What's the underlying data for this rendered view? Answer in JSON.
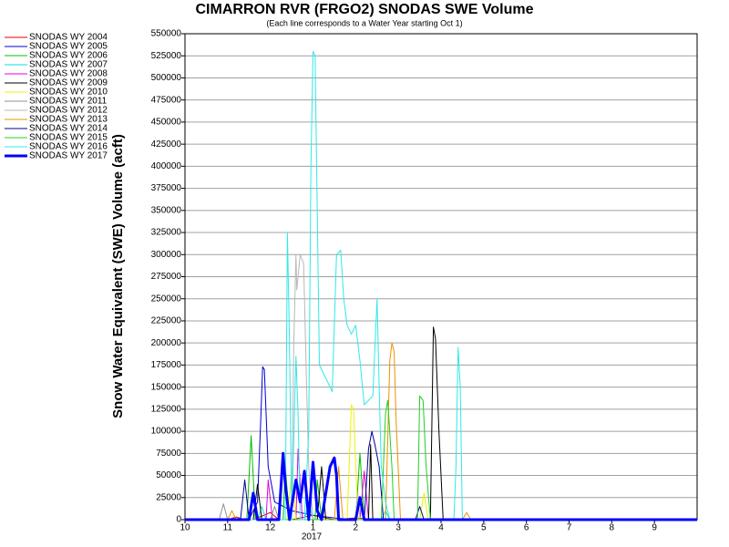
{
  "chart_data": {
    "type": "line",
    "title": "CIMARRON RVR (FRGO2) SNODAS SWE Volume",
    "subtitle": "(Each line corresponds to a Water Year starting Oct 1)",
    "y_label": "Snow Water Equivalent (SWE) Volume (acft)",
    "year_label": "2017",
    "xlim": [
      0,
      12
    ],
    "xticks": [
      {
        "value": 0,
        "label": "10"
      },
      {
        "value": 1,
        "label": "11"
      },
      {
        "value": 2,
        "label": "12"
      },
      {
        "value": 3,
        "label": "1"
      },
      {
        "value": 4,
        "label": "2"
      },
      {
        "value": 5,
        "label": "3"
      },
      {
        "value": 6,
        "label": "4"
      },
      {
        "value": 7,
        "label": "5"
      },
      {
        "value": 8,
        "label": "6"
      },
      {
        "value": 9,
        "label": "7"
      },
      {
        "value": 10,
        "label": "8"
      },
      {
        "value": 11,
        "label": "9"
      }
    ],
    "ylim": [
      0,
      550000
    ],
    "yticks": [
      0,
      25000,
      50000,
      75000,
      100000,
      125000,
      150000,
      175000,
      200000,
      225000,
      250000,
      275000,
      300000,
      325000,
      350000,
      375000,
      400000,
      425000,
      450000,
      475000,
      500000,
      525000,
      550000
    ],
    "grid": true,
    "legend": "top-left",
    "series": [
      {
        "name": "SNODAS WY 2004",
        "color": "#e00000",
        "x": [
          0,
          1.0,
          1.2,
          1.4,
          1.6,
          2.0,
          2.2,
          2.5,
          3.0,
          3.5,
          4.0,
          4.5,
          5.0,
          6.0,
          12
        ],
        "values": [
          0,
          0,
          3000,
          0,
          0,
          8000,
          0,
          0,
          5000,
          0,
          2000,
          0,
          0,
          0,
          0
        ]
      },
      {
        "name": "SNODAS WY 2005",
        "color": "#0000d0",
        "x": [
          0,
          1.5,
          1.7,
          1.78,
          1.82,
          1.86,
          1.95,
          2.1,
          2.5,
          3.0,
          3.5,
          4.0,
          5.0,
          12
        ],
        "values": [
          0,
          0,
          20000,
          120000,
          173000,
          170000,
          60000,
          20000,
          10000,
          5000,
          2000,
          0,
          0,
          0
        ]
      },
      {
        "name": "SNODAS WY 2006",
        "color": "#00c000",
        "x": [
          0,
          1.45,
          1.55,
          1.65,
          2.3,
          2.35,
          2.45,
          3.05,
          3.1,
          3.2,
          4.0,
          4.1,
          4.2,
          5.0,
          12
        ],
        "values": [
          0,
          0,
          95000,
          0,
          0,
          60000,
          0,
          0,
          45000,
          0,
          0,
          75000,
          0,
          0,
          0
        ]
      },
      {
        "name": "SNODAS WY 2007",
        "color": "#00e0e0",
        "x": [
          0,
          1.7,
          1.8,
          1.9,
          2.8,
          2.9,
          3.0,
          4.6,
          4.7,
          4.8,
          12
        ],
        "values": [
          0,
          0,
          15000,
          0,
          0,
          20000,
          0,
          0,
          10000,
          0,
          0
        ]
      },
      {
        "name": "SNODAS WY 2008",
        "color": "#e000e0",
        "x": [
          0,
          1.9,
          1.95,
          2.05,
          2.6,
          2.65,
          2.75,
          4.1,
          4.2,
          4.3,
          12
        ],
        "values": [
          0,
          0,
          45000,
          0,
          0,
          80000,
          0,
          0,
          55000,
          0,
          0
        ]
      },
      {
        "name": "SNODAS WY 2009",
        "color": "#000000",
        "x": [
          0,
          1.6,
          1.7,
          1.8,
          3.1,
          3.2,
          3.3,
          4.3,
          4.35,
          4.4,
          5.75,
          5.82,
          5.87,
          5.95,
          6.05,
          12
        ],
        "values": [
          0,
          0,
          40000,
          0,
          0,
          60000,
          0,
          0,
          85000,
          0,
          0,
          218000,
          205000,
          100000,
          0,
          0
        ]
      },
      {
        "name": "SNODAS WY 2010",
        "color": "#f0f000",
        "x": [
          0,
          2.4,
          2.5,
          2.6,
          3.8,
          3.9,
          3.95,
          4.05,
          5.5,
          5.6,
          5.7,
          12
        ],
        "values": [
          0,
          0,
          55000,
          0,
          0,
          130000,
          125000,
          0,
          0,
          30000,
          0,
          0
        ]
      },
      {
        "name": "SNODAS WY 2011",
        "color": "#909090",
        "x": [
          0,
          0.8,
          0.9,
          1.0,
          2.0,
          2.1,
          2.2,
          12
        ],
        "values": [
          0,
          0,
          18000,
          0,
          0,
          15000,
          0,
          0
        ]
      },
      {
        "name": "SNODAS WY 2012",
        "color": "#b8b8b8",
        "x": [
          0,
          2.5,
          2.55,
          2.6,
          2.62,
          2.7,
          2.78,
          2.85,
          2.9,
          3.0,
          4.0,
          4.05,
          4.1,
          12
        ],
        "values": [
          0,
          0,
          200000,
          300000,
          260000,
          300000,
          290000,
          150000,
          60000,
          0,
          0,
          30000,
          0,
          0
        ]
      },
      {
        "name": "SNODAS WY 2013",
        "color": "#f09000",
        "x": [
          0,
          1.0,
          1.1,
          1.2,
          3.5,
          3.6,
          3.7,
          4.7,
          4.8,
          4.85,
          4.9,
          4.95,
          5.05,
          6.5,
          6.6,
          6.7,
          12
        ],
        "values": [
          0,
          0,
          10000,
          0,
          0,
          60000,
          0,
          0,
          180000,
          200000,
          190000,
          110000,
          0,
          0,
          8000,
          0,
          0
        ]
      },
      {
        "name": "SNODAS WY 2014",
        "color": "#000090",
        "x": [
          0,
          1.3,
          1.4,
          1.5,
          4.2,
          4.3,
          4.38,
          4.45,
          4.55,
          4.65,
          5.4,
          5.5,
          5.6,
          12
        ],
        "values": [
          0,
          0,
          45000,
          0,
          0,
          80000,
          100000,
          85000,
          60000,
          0,
          0,
          15000,
          0,
          0
        ]
      },
      {
        "name": "SNODAS WY 2015",
        "color": "#20d020",
        "x": [
          0,
          4.6,
          4.7,
          4.75,
          4.85,
          4.9,
          5.0,
          5.45,
          5.5,
          5.58,
          5.65,
          5.75,
          12
        ],
        "values": [
          0,
          0,
          120000,
          135000,
          60000,
          0,
          0,
          0,
          140000,
          135000,
          60000,
          0,
          0
        ]
      },
      {
        "name": "SNODAS WY 2016",
        "color": "#30e8e8",
        "x": [
          0,
          2.35,
          2.4,
          2.45,
          2.5,
          2.6,
          2.65,
          2.7,
          2.8,
          2.9,
          2.95,
          3.0,
          3.05,
          3.15,
          3.3,
          3.45,
          3.55,
          3.65,
          3.72,
          3.8,
          3.9,
          4.0,
          4.1,
          4.2,
          4.4,
          4.5,
          4.55,
          4.6,
          4.7,
          4.8,
          5.0,
          6.3,
          6.35,
          6.4,
          6.45,
          6.5,
          12
        ],
        "values": [
          0,
          0,
          325000,
          200000,
          0,
          185000,
          120000,
          0,
          0,
          100000,
          400000,
          530000,
          525000,
          175000,
          160000,
          145000,
          300000,
          305000,
          250000,
          220000,
          210000,
          220000,
          180000,
          130000,
          140000,
          250000,
          150000,
          60000,
          20000,
          0,
          0,
          0,
          60000,
          195000,
          150000,
          0,
          0
        ]
      },
      {
        "name": "SNODAS WY 2017",
        "color": "#0000ff",
        "line_width": 3,
        "x": [
          0,
          1.5,
          1.6,
          1.7,
          2.2,
          2.3,
          2.35,
          2.45,
          2.6,
          2.7,
          2.8,
          2.9,
          3.0,
          3.1,
          3.2,
          3.4,
          3.5,
          3.55,
          3.6,
          4.0,
          4.1,
          4.2,
          5.0,
          12
        ],
        "values": [
          0,
          0,
          30000,
          0,
          0,
          75000,
          40000,
          0,
          45000,
          20000,
          55000,
          0,
          65000,
          10000,
          0,
          60000,
          70000,
          50000,
          0,
          0,
          25000,
          0,
          0,
          0
        ]
      }
    ]
  }
}
